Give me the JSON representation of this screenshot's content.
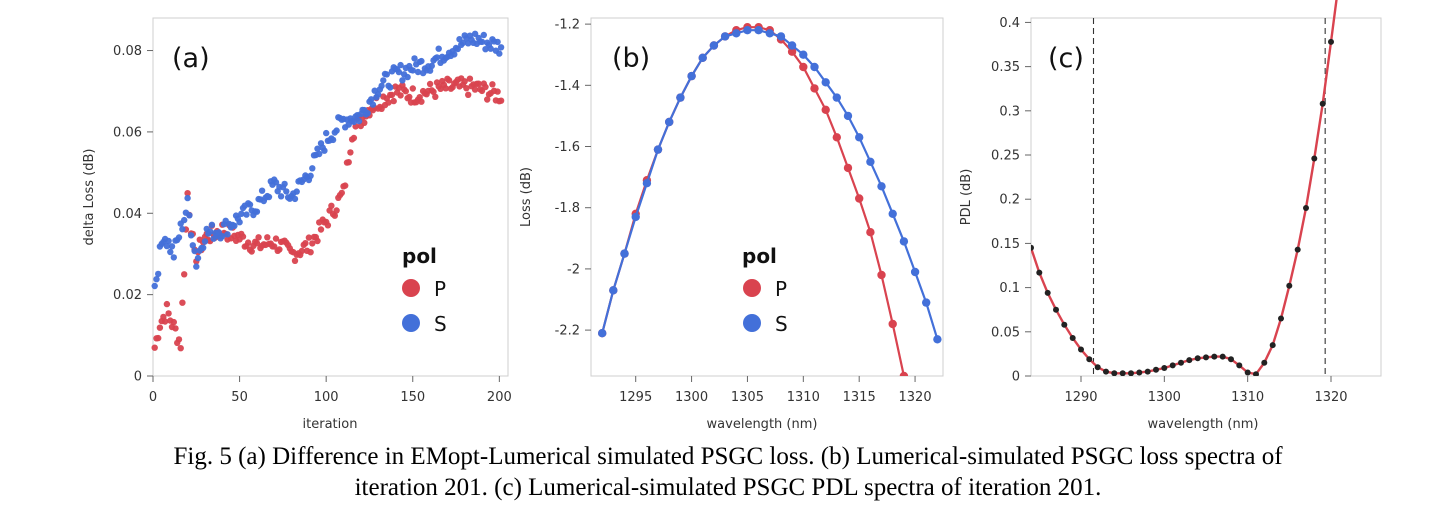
{
  "colors": {
    "P": "#d9434f",
    "S": "#4370d9",
    "marker_c": "#222222",
    "line_c": "#d9434f"
  },
  "chart_data": [
    {
      "panel": "a",
      "type": "scatter",
      "label": "(a)",
      "xlabel": "iteration",
      "ylabel": "delta Loss (dB)",
      "xlim": [
        0,
        205
      ],
      "ylim": [
        0,
        0.088
      ],
      "xticks": [
        0,
        50,
        100,
        150,
        200
      ],
      "yticks": [
        0,
        0.02,
        0.04,
        0.06,
        0.08
      ],
      "xtick_labels": [
        "0",
        "50",
        "100",
        "150",
        "200"
      ],
      "ytick_labels": [
        "0",
        "0.02",
        "0.04",
        "0.06",
        "0.08"
      ],
      "legend": {
        "title": "pol",
        "items": [
          "P",
          "S"
        ],
        "placement": "lower-right"
      },
      "series": [
        {
          "name": "P",
          "color_key": "P",
          "trend": [
            [
              1,
              0.007
            ],
            [
              4,
              0.013
            ],
            [
              8,
              0.016
            ],
            [
              12,
              0.012
            ],
            [
              16,
              0.008
            ],
            [
              20,
              0.045
            ],
            [
              24,
              0.029
            ],
            [
              30,
              0.034
            ],
            [
              40,
              0.036
            ],
            [
              50,
              0.034
            ],
            [
              60,
              0.032
            ],
            [
              70,
              0.033
            ],
            [
              80,
              0.03
            ],
            [
              90,
              0.032
            ],
            [
              100,
              0.038
            ],
            [
              110,
              0.045
            ],
            [
              115,
              0.06
            ],
            [
              125,
              0.066
            ],
            [
              140,
              0.07
            ],
            [
              150,
              0.069
            ],
            [
              170,
              0.071
            ],
            [
              185,
              0.071
            ],
            [
              200,
              0.069
            ]
          ],
          "noise": 0.0022
        },
        {
          "name": "S",
          "color_key": "S",
          "trend": [
            [
              1,
              0.022
            ],
            [
              6,
              0.035
            ],
            [
              12,
              0.03
            ],
            [
              20,
              0.042
            ],
            [
              25,
              0.028
            ],
            [
              30,
              0.035
            ],
            [
              40,
              0.036
            ],
            [
              50,
              0.039
            ],
            [
              60,
              0.042
            ],
            [
              70,
              0.047
            ],
            [
              80,
              0.044
            ],
            [
              90,
              0.05
            ],
            [
              100,
              0.058
            ],
            [
              110,
              0.063
            ],
            [
              120,
              0.064
            ],
            [
              130,
              0.071
            ],
            [
              140,
              0.074
            ],
            [
              150,
              0.076
            ],
            [
              160,
              0.077
            ],
            [
              170,
              0.08
            ],
            [
              185,
              0.083
            ],
            [
              200,
              0.081
            ]
          ],
          "noise": 0.0022
        }
      ]
    },
    {
      "panel": "b",
      "type": "line",
      "label": "(b)",
      "xlabel": "wavelength (nm)",
      "ylabel": "Loss (dB)",
      "xlim": [
        1291,
        1322.5
      ],
      "ylim": [
        -2.35,
        -1.18
      ],
      "xticks": [
        1295,
        1300,
        1305,
        1310,
        1315,
        1320
      ],
      "yticks": [
        -2.2,
        -2,
        -1.8,
        -1.6,
        -1.4,
        -1.2
      ],
      "xtick_labels": [
        "1295",
        "1300",
        "1305",
        "1310",
        "1315",
        "1320"
      ],
      "ytick_labels": [
        "-2.2",
        "-2",
        "-1.8",
        "-1.6",
        "-1.4",
        "-1.2"
      ],
      "legend": {
        "title": "pol",
        "items": [
          "P",
          "S"
        ],
        "placement": "lower-center"
      },
      "series": [
        {
          "name": "P",
          "color_key": "P",
          "x": [
            1292,
            1293,
            1294,
            1295,
            1296,
            1297,
            1298,
            1299,
            1300,
            1301,
            1302,
            1303,
            1304,
            1305,
            1306,
            1307,
            1308,
            1309,
            1310,
            1311,
            1312,
            1313,
            1314,
            1315,
            1316,
            1317,
            1318,
            1319,
            1320
          ],
          "y": [
            -2.21,
            -2.07,
            -1.95,
            -1.82,
            -1.71,
            -1.61,
            -1.52,
            -1.44,
            -1.37,
            -1.31,
            -1.27,
            -1.24,
            -1.22,
            -1.21,
            -1.21,
            -1.22,
            -1.25,
            -1.29,
            -1.34,
            -1.41,
            -1.48,
            -1.57,
            -1.67,
            -1.77,
            -1.88,
            -2.02,
            -2.18,
            -2.35,
            -2.52
          ]
        },
        {
          "name": "S",
          "color_key": "S",
          "x": [
            1292,
            1293,
            1294,
            1295,
            1296,
            1297,
            1298,
            1299,
            1300,
            1301,
            1302,
            1303,
            1304,
            1305,
            1306,
            1307,
            1308,
            1309,
            1310,
            1311,
            1312,
            1313,
            1314,
            1315,
            1316,
            1317,
            1318,
            1319,
            1320,
            1321,
            1322
          ],
          "y": [
            -2.21,
            -2.07,
            -1.95,
            -1.83,
            -1.72,
            -1.61,
            -1.52,
            -1.44,
            -1.37,
            -1.31,
            -1.27,
            -1.24,
            -1.23,
            -1.22,
            -1.22,
            -1.23,
            -1.24,
            -1.27,
            -1.3,
            -1.34,
            -1.39,
            -1.44,
            -1.5,
            -1.57,
            -1.65,
            -1.73,
            -1.82,
            -1.91,
            -2.01,
            -2.11,
            -2.23
          ]
        }
      ]
    },
    {
      "panel": "c",
      "type": "line",
      "label": "(c)",
      "xlabel": "wavelength (nm)",
      "ylabel": "PDL (dB)",
      "xlim": [
        1284,
        1326
      ],
      "ylim": [
        0,
        0.405
      ],
      "xticks": [
        1290,
        1300,
        1310,
        1320
      ],
      "yticks": [
        0,
        0.05,
        0.1,
        0.15,
        0.2,
        0.25,
        0.3,
        0.35,
        0.4
      ],
      "xtick_labels": [
        "1290",
        "1300",
        "1310",
        "1320"
      ],
      "ytick_labels": [
        "0",
        "0.05",
        "0.1",
        "0.15",
        "0.2",
        "0.25",
        "0.3",
        "0.35",
        "0.4"
      ],
      "vlines": [
        1291.5,
        1319.3
      ],
      "series": [
        {
          "name": "",
          "color_key": "line_c",
          "x": [
            1284,
            1285,
            1286,
            1287,
            1288,
            1289,
            1290,
            1291,
            1292,
            1293,
            1294,
            1295,
            1296,
            1297,
            1298,
            1299,
            1300,
            1301,
            1302,
            1303,
            1304,
            1305,
            1306,
            1307,
            1308,
            1309,
            1310,
            1311,
            1312,
            1313,
            1314,
            1315,
            1316,
            1317,
            1318,
            1319,
            1320,
            1321
          ],
          "y": [
            0.145,
            0.117,
            0.094,
            0.075,
            0.058,
            0.043,
            0.03,
            0.019,
            0.01,
            0.005,
            0.003,
            0.003,
            0.003,
            0.004,
            0.005,
            0.007,
            0.009,
            0.012,
            0.015,
            0.018,
            0.02,
            0.021,
            0.022,
            0.022,
            0.019,
            0.012,
            0.004,
            0.002,
            0.015,
            0.035,
            0.065,
            0.102,
            0.143,
            0.19,
            0.246,
            0.308,
            0.378,
            0.45
          ]
        },
        {
          "name": "",
          "color_key": "marker_c",
          "x": [
            1284,
            1285,
            1286,
            1287,
            1288,
            1289,
            1290,
            1291,
            1292,
            1293,
            1294,
            1295,
            1296,
            1297,
            1298,
            1299,
            1300,
            1301,
            1302,
            1303,
            1304,
            1305,
            1306,
            1307,
            1308,
            1309,
            1310,
            1311,
            1312,
            1313,
            1314,
            1315,
            1316,
            1317,
            1318,
            1319,
            1320
          ],
          "y": [
            0.145,
            0.117,
            0.094,
            0.075,
            0.058,
            0.043,
            0.03,
            0.019,
            0.01,
            0.005,
            0.003,
            0.003,
            0.003,
            0.004,
            0.005,
            0.007,
            0.009,
            0.012,
            0.015,
            0.018,
            0.02,
            0.021,
            0.022,
            0.022,
            0.019,
            0.012,
            0.004,
            0.002,
            0.015,
            0.035,
            0.065,
            0.102,
            0.143,
            0.19,
            0.246,
            0.308,
            0.378
          ]
        }
      ]
    }
  ],
  "caption": {
    "line1": "Fig. 5 (a) Difference in EMopt-Lumerical simulated PSGC loss.  (b) Lumerical-simulated PSGC loss spectra of",
    "line2": "iteration 201. (c) Lumerical-simulated PSGC PDL spectra of iteration 201."
  }
}
